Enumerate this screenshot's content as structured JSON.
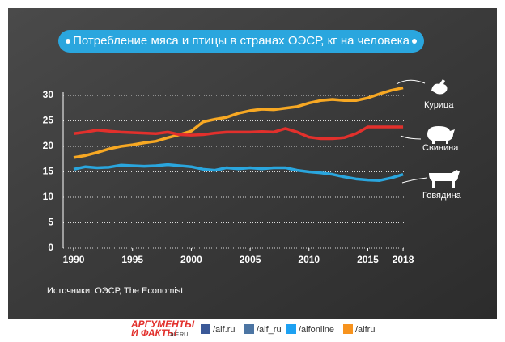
{
  "chart_data": {
    "type": "line",
    "title": "Потребление мяса и птицы в странах ОЭСР, кг на человека",
    "source": "Источники: ОЭСР, The Economist",
    "x": [
      1990,
      1991,
      1992,
      1993,
      1994,
      1995,
      1996,
      1997,
      1998,
      1999,
      2000,
      2001,
      2002,
      2003,
      2004,
      2005,
      2006,
      2007,
      2008,
      2009,
      2010,
      2011,
      2012,
      2013,
      2014,
      2015,
      2016,
      2017,
      2018
    ],
    "xlim": [
      1989,
      2019
    ],
    "xticks": [
      1990,
      1995,
      2000,
      2005,
      2010,
      2015,
      2018
    ],
    "ylim": [
      0,
      32
    ],
    "yticks": [
      0,
      5,
      10,
      15,
      20,
      25,
      30
    ],
    "grid": true,
    "series": [
      {
        "name": "Курица",
        "color": "#f7a823",
        "values": [
          17.8,
          18.2,
          18.8,
          19.5,
          20,
          20.3,
          20.7,
          21,
          21.7,
          22.3,
          23,
          24.8,
          25.3,
          25.7,
          26.5,
          27,
          27.3,
          27.2,
          27.5,
          27.8,
          28.5,
          29,
          29.2,
          29,
          29,
          29.5,
          30.3,
          31,
          31.5
        ]
      },
      {
        "name": "Свинина",
        "color": "#e2302c",
        "values": [
          22.5,
          22.8,
          23.2,
          23,
          22.8,
          22.7,
          22.6,
          22.5,
          22.8,
          22.3,
          22.2,
          22.3,
          22.6,
          22.8,
          22.8,
          22.8,
          22.9,
          22.8,
          23.5,
          22.8,
          21.8,
          21.5,
          21.5,
          21.7,
          22.5,
          23.8,
          23.8,
          23.8,
          23.8
        ]
      },
      {
        "name": "Говядина",
        "color": "#2aa6de",
        "values": [
          15.5,
          16,
          15.8,
          15.9,
          16.3,
          16.2,
          16.1,
          16.2,
          16.4,
          16.2,
          16,
          15.5,
          15.3,
          15.8,
          15.6,
          15.8,
          15.6,
          15.8,
          15.8,
          15.3,
          15,
          14.8,
          14.5,
          14,
          13.6,
          13.4,
          13.3,
          13.8,
          14.5
        ]
      }
    ]
  },
  "footer": {
    "logo_top": "АРГУМЕНТЫ",
    "logo_bottom": "И ФАКТЫ",
    "logo_site": "AIF.RU",
    "social": [
      "/aif.ru",
      "/aif_ru",
      "/aifonline",
      "/aifru"
    ]
  }
}
